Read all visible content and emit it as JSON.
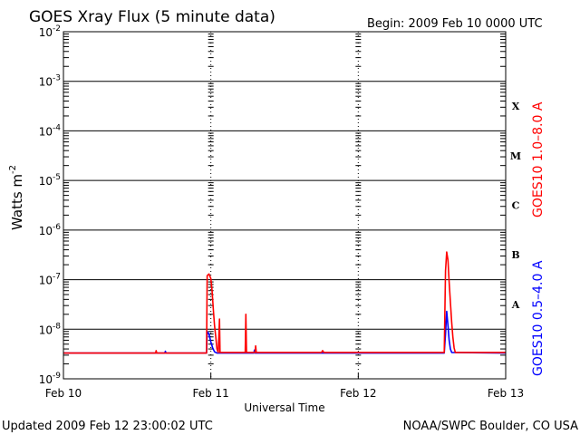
{
  "header": {
    "title": "GOES Xray Flux (5 minute data)",
    "begin": "Begin:  2009 Feb 10 0000 UTC"
  },
  "footer": {
    "updated": "Updated 2009 Feb 12 23:00:02 UTC",
    "credit": "NOAA/SWPC Boulder, CO USA"
  },
  "chart_data": {
    "type": "line",
    "title": "GOES Xray Flux (5 minute data)",
    "xlabel": "Universal Time",
    "ylabel": "Watts m",
    "ylabel_sup": "-2",
    "yscale": "log",
    "ylim": [
      1e-09,
      0.01
    ],
    "xlim": [
      0,
      72
    ],
    "x_unit": "hours since 2009 Feb 10 0000 UTC",
    "x_ticks": [
      {
        "x": 0,
        "label": "Feb 10"
      },
      {
        "x": 24,
        "label": "Feb 11"
      },
      {
        "x": 48,
        "label": "Feb 12"
      },
      {
        "x": 72,
        "label": "Feb 13"
      }
    ],
    "y_ticks": [
      {
        "exp": -2,
        "base": "10",
        "sup": "-2"
      },
      {
        "exp": -3,
        "base": "10",
        "sup": "-3"
      },
      {
        "exp": -4,
        "base": "10",
        "sup": "-4"
      },
      {
        "exp": -5,
        "base": "10",
        "sup": "-5"
      },
      {
        "exp": -6,
        "base": "10",
        "sup": "-6"
      },
      {
        "exp": -7,
        "base": "10",
        "sup": "-7"
      },
      {
        "exp": -8,
        "base": "10",
        "sup": "-8"
      },
      {
        "exp": -9,
        "base": "10",
        "sup": "-9"
      }
    ],
    "flare_classes": [
      {
        "label": "X",
        "exp": -3.5
      },
      {
        "label": "M",
        "exp": -4.5
      },
      {
        "label": "C",
        "exp": -5.5
      },
      {
        "label": "B",
        "exp": -6.5
      },
      {
        "label": "A",
        "exp": -7.5
      }
    ],
    "grid": true,
    "series": [
      {
        "name": "GOES10 1.0–8.0 A",
        "color": "#ff0000",
        "points": [
          [
            0,
            3.3e-09
          ],
          [
            15.0,
            3.3e-09
          ],
          [
            15.1,
            3.7e-09
          ],
          [
            15.2,
            3.3e-09
          ],
          [
            18.0,
            3.3e-09
          ],
          [
            23.3,
            3.3e-09
          ],
          [
            23.4,
            1.2e-07
          ],
          [
            23.7,
            1.3e-07
          ],
          [
            24.0,
            1.05e-07
          ],
          [
            24.2,
            6e-08
          ],
          [
            24.4,
            2.5e-08
          ],
          [
            24.6,
            1.2e-08
          ],
          [
            24.8,
            7e-09
          ],
          [
            25.0,
            4e-09
          ],
          [
            25.2,
            3.4e-09
          ],
          [
            25.4,
            1.6e-08
          ],
          [
            25.5,
            3.4e-09
          ],
          [
            29.6,
            3.4e-09
          ],
          [
            29.7,
            2e-08
          ],
          [
            29.8,
            3.4e-09
          ],
          [
            31.2,
            3.4e-09
          ],
          [
            31.3,
            4.6e-09
          ],
          [
            31.4,
            3.4e-09
          ],
          [
            42.0,
            3.4e-09
          ],
          [
            42.2,
            3.7e-09
          ],
          [
            42.4,
            3.4e-09
          ],
          [
            62.0,
            3.4e-09
          ],
          [
            62.2,
            1.5e-07
          ],
          [
            62.4,
            3.6e-07
          ],
          [
            62.6,
            2.5e-07
          ],
          [
            62.8,
            9e-08
          ],
          [
            63.0,
            3.5e-08
          ],
          [
            63.2,
            1.4e-08
          ],
          [
            63.4,
            7e-09
          ],
          [
            63.6,
            4.2e-09
          ],
          [
            63.8,
            3.4e-09
          ],
          [
            72,
            3.4e-09
          ]
        ]
      },
      {
        "name": "GOES10 0.5–4.0 A",
        "color": "#0000ff",
        "points": [
          [
            0,
            3.3e-09
          ],
          [
            16.5,
            3.3e-09
          ],
          [
            16.6,
            3.6e-09
          ],
          [
            16.7,
            3.3e-09
          ],
          [
            23.3,
            3.3e-09
          ],
          [
            23.4,
            9e-09
          ],
          [
            23.7,
            8e-09
          ],
          [
            24.0,
            5.5e-09
          ],
          [
            24.3,
            4.2e-09
          ],
          [
            24.6,
            3.5e-09
          ],
          [
            25.0,
            3.3e-09
          ],
          [
            31.0,
            3.3e-09
          ],
          [
            31.1,
            3.8e-09
          ],
          [
            31.2,
            3.3e-09
          ],
          [
            62.0,
            3.3e-09
          ],
          [
            62.2,
            8e-09
          ],
          [
            62.4,
            2.3e-08
          ],
          [
            62.6,
            1.2e-08
          ],
          [
            62.8,
            6e-09
          ],
          [
            63.0,
            4e-09
          ],
          [
            63.2,
            3.4e-09
          ],
          [
            72,
            3.3e-09
          ]
        ]
      }
    ]
  }
}
